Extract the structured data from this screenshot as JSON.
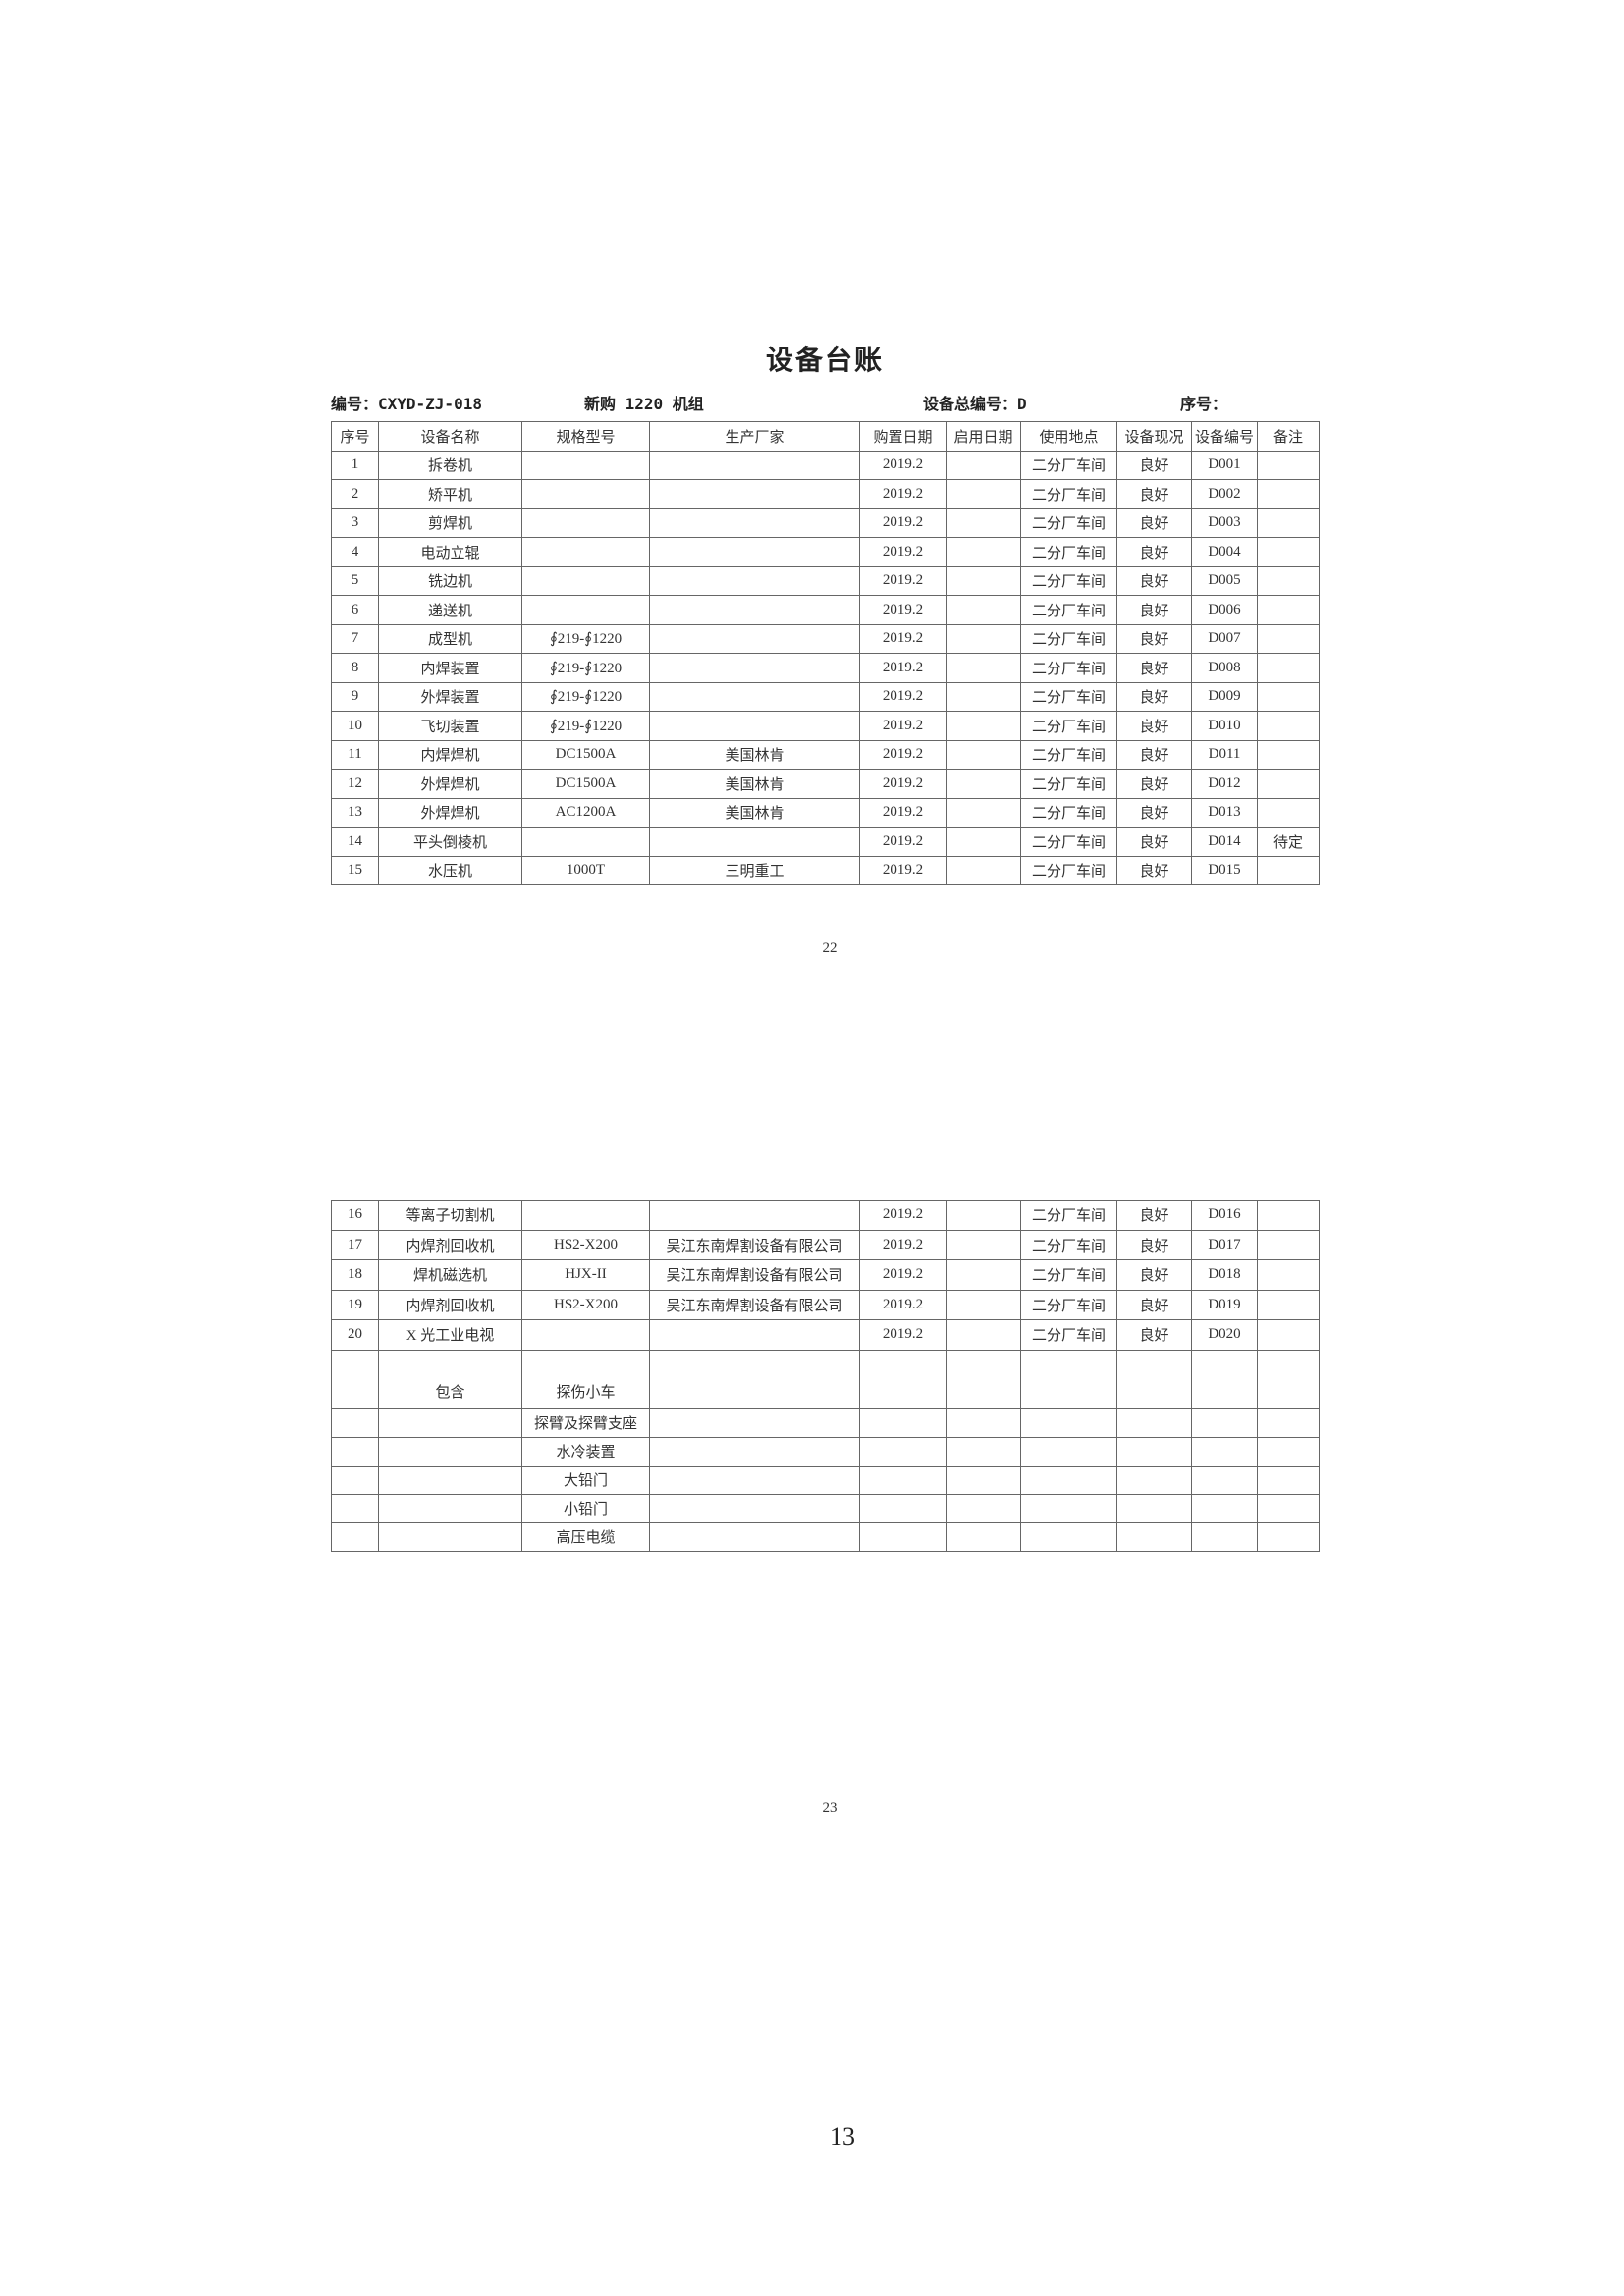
{
  "title": "设备台账",
  "meta": {
    "code": "编号：CXYD-ZJ-018",
    "group": "新购 1220 机组",
    "total_code": "设备总编号：D",
    "seq": "序号："
  },
  "columns": [
    "序号",
    "设备名称",
    "规格型号",
    "生产厂家",
    "购置日期",
    "启用日期",
    "使用地点",
    "设备现况",
    "设备编号",
    "备注"
  ],
  "rows_page1": [
    [
      "1",
      "拆卷机",
      "",
      "",
      "2019.2",
      "",
      "二分厂车间",
      "良好",
      "D001",
      ""
    ],
    [
      "2",
      "矫平机",
      "",
      "",
      "2019.2",
      "",
      "二分厂车间",
      "良好",
      "D002",
      ""
    ],
    [
      "3",
      "剪焊机",
      "",
      "",
      "2019.2",
      "",
      "二分厂车间",
      "良好",
      "D003",
      ""
    ],
    [
      "4",
      "电动立辊",
      "",
      "",
      "2019.2",
      "",
      "二分厂车间",
      "良好",
      "D004",
      ""
    ],
    [
      "5",
      "铣边机",
      "",
      "",
      "2019.2",
      "",
      "二分厂车间",
      "良好",
      "D005",
      ""
    ],
    [
      "6",
      "递送机",
      "",
      "",
      "2019.2",
      "",
      "二分厂车间",
      "良好",
      "D006",
      ""
    ],
    [
      "7",
      "成型机",
      "∮219-∮1220",
      "",
      "2019.2",
      "",
      "二分厂车间",
      "良好",
      "D007",
      ""
    ],
    [
      "8",
      "内焊装置",
      "∮219-∮1220",
      "",
      "2019.2",
      "",
      "二分厂车间",
      "良好",
      "D008",
      ""
    ],
    [
      "9",
      "外焊装置",
      "∮219-∮1220",
      "",
      "2019.2",
      "",
      "二分厂车间",
      "良好",
      "D009",
      ""
    ],
    [
      "10",
      "飞切装置",
      "∮219-∮1220",
      "",
      "2019.2",
      "",
      "二分厂车间",
      "良好",
      "D010",
      ""
    ],
    [
      "11",
      "内焊焊机",
      "DC1500A",
      "美国林肯",
      "2019.2",
      "",
      "二分厂车间",
      "良好",
      "D011",
      ""
    ],
    [
      "12",
      "外焊焊机",
      "DC1500A",
      "美国林肯",
      "2019.2",
      "",
      "二分厂车间",
      "良好",
      "D012",
      ""
    ],
    [
      "13",
      "外焊焊机",
      "AC1200A",
      "美国林肯",
      "2019.2",
      "",
      "二分厂车间",
      "良好",
      "D013",
      ""
    ],
    [
      "14",
      "平头倒棱机",
      "",
      "",
      "2019.2",
      "",
      "二分厂车间",
      "良好",
      "D014",
      "待定"
    ],
    [
      "15",
      "水压机",
      "1000T",
      "三明重工",
      "2019.2",
      "",
      "二分厂车间",
      "良好",
      "D015",
      ""
    ]
  ],
  "rows_page2": [
    [
      "16",
      "等离子切割机",
      "",
      "",
      "2019.2",
      "",
      "二分厂车间",
      "良好",
      "D016",
      ""
    ],
    [
      "17",
      "内焊剂回收机",
      "HS2-X200",
      "吴江东南焊割设备有限公司",
      "2019.2",
      "",
      "二分厂车间",
      "良好",
      "D017",
      ""
    ],
    [
      "18",
      "焊机磁选机",
      "HJX-II",
      "吴江东南焊割设备有限公司",
      "2019.2",
      "",
      "二分厂车间",
      "良好",
      "D018",
      ""
    ],
    [
      "19",
      "内焊剂回收机",
      "HS2-X200",
      "吴江东南焊割设备有限公司",
      "2019.2",
      "",
      "二分厂车间",
      "良好",
      "D019",
      ""
    ],
    [
      "20",
      "X 光工业电视",
      "",
      "",
      "2019.2",
      "",
      "二分厂车间",
      "良好",
      "D020",
      ""
    ]
  ],
  "includes_label": "包含",
  "includes": [
    "探伤小车",
    "探臂及探臂支座",
    "水冷装置",
    "大铅门",
    "小铅门",
    "高压电缆"
  ],
  "page_marks": [
    "22",
    "23"
  ],
  "page_number": "13"
}
